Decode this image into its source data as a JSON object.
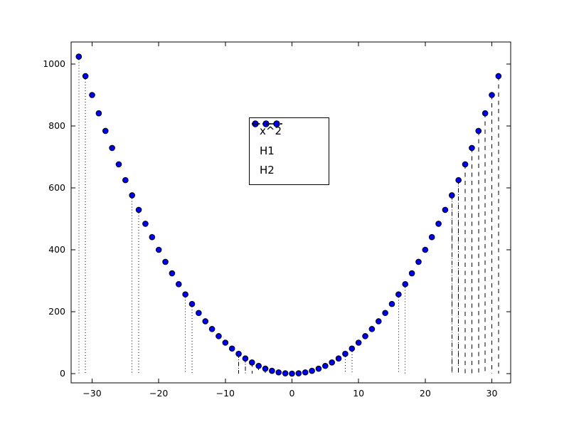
{
  "figure": {
    "background": "#ffffff"
  },
  "chart_data": {
    "type": "scatter",
    "title": "",
    "xlabel": "",
    "ylabel": "",
    "grid": false,
    "xlim": [
      -33.15,
      32.83
    ],
    "ylim": [
      -29.9,
      1071.3
    ],
    "xticks": [
      -30,
      -20,
      -10,
      0,
      10,
      20,
      30
    ],
    "xtick_labels": [
      "−30",
      "−20",
      "−10",
      "0",
      "10",
      "20",
      "30"
    ],
    "yticks": [
      0,
      200,
      400,
      600,
      800,
      1000
    ],
    "ytick_labels": [
      "0",
      "200",
      "400",
      "600",
      "800",
      "1000"
    ],
    "colors": {
      "marker_fill": "#0000f0",
      "marker_edge": "#000000",
      "line": "#000000",
      "axis": "#000000",
      "text": "#000000",
      "background": "#ffffff"
    },
    "legend": {
      "position": "upper-center-left",
      "entries": [
        {
          "label": "x^2",
          "style": "dots"
        },
        {
          "label": "H1",
          "style": "dashed"
        },
        {
          "label": "H2",
          "style": "dotted"
        }
      ]
    },
    "series": [
      {
        "name": "x^2",
        "style": "dots",
        "x": [
          -32,
          -31,
          -30,
          -29,
          -28,
          -27,
          -26,
          -25,
          -24,
          -23,
          -22,
          -21,
          -20,
          -19,
          -18,
          -17,
          -16,
          -15,
          -14,
          -13,
          -12,
          -11,
          -10,
          -9,
          -8,
          -7,
          -6,
          -5,
          -4,
          -3,
          -2,
          -1,
          0,
          1,
          2,
          3,
          4,
          5,
          6,
          7,
          8,
          9,
          10,
          11,
          12,
          13,
          14,
          15,
          16,
          17,
          18,
          19,
          20,
          21,
          22,
          23,
          24,
          25,
          26,
          27,
          28,
          29,
          30,
          31
        ],
        "y": [
          1024,
          961,
          900,
          841,
          784,
          729,
          676,
          625,
          576,
          529,
          484,
          441,
          400,
          361,
          324,
          289,
          256,
          225,
          196,
          169,
          144,
          121,
          100,
          81,
          64,
          49,
          36,
          25,
          16,
          9,
          4,
          1,
          0,
          1,
          4,
          9,
          16,
          25,
          36,
          49,
          64,
          81,
          100,
          121,
          144,
          169,
          196,
          225,
          256,
          289,
          324,
          361,
          400,
          441,
          484,
          529,
          576,
          625,
          676,
          729,
          784,
          841,
          900,
          961
        ]
      },
      {
        "name": "H1",
        "style": "dashed-vlines",
        "ymin": 0,
        "x": [
          -8,
          -7,
          -6,
          -5,
          -4,
          -3,
          -2,
          -1,
          24,
          25,
          26,
          27,
          28,
          29,
          30,
          31
        ],
        "ymax": [
          64,
          49,
          36,
          25,
          16,
          9,
          4,
          1,
          576,
          625,
          676,
          729,
          784,
          841,
          900,
          961
        ]
      },
      {
        "name": "H2",
        "style": "dotted-vlines",
        "ymin": 0,
        "x": [
          -32,
          -31,
          -24,
          -23,
          -16,
          -15,
          -8,
          -7,
          0,
          1,
          8,
          9,
          16,
          17,
          24,
          25
        ],
        "ymax": [
          1024,
          961,
          576,
          529,
          256,
          225,
          64,
          49,
          0,
          1,
          64,
          81,
          256,
          289,
          576,
          625
        ]
      }
    ]
  }
}
